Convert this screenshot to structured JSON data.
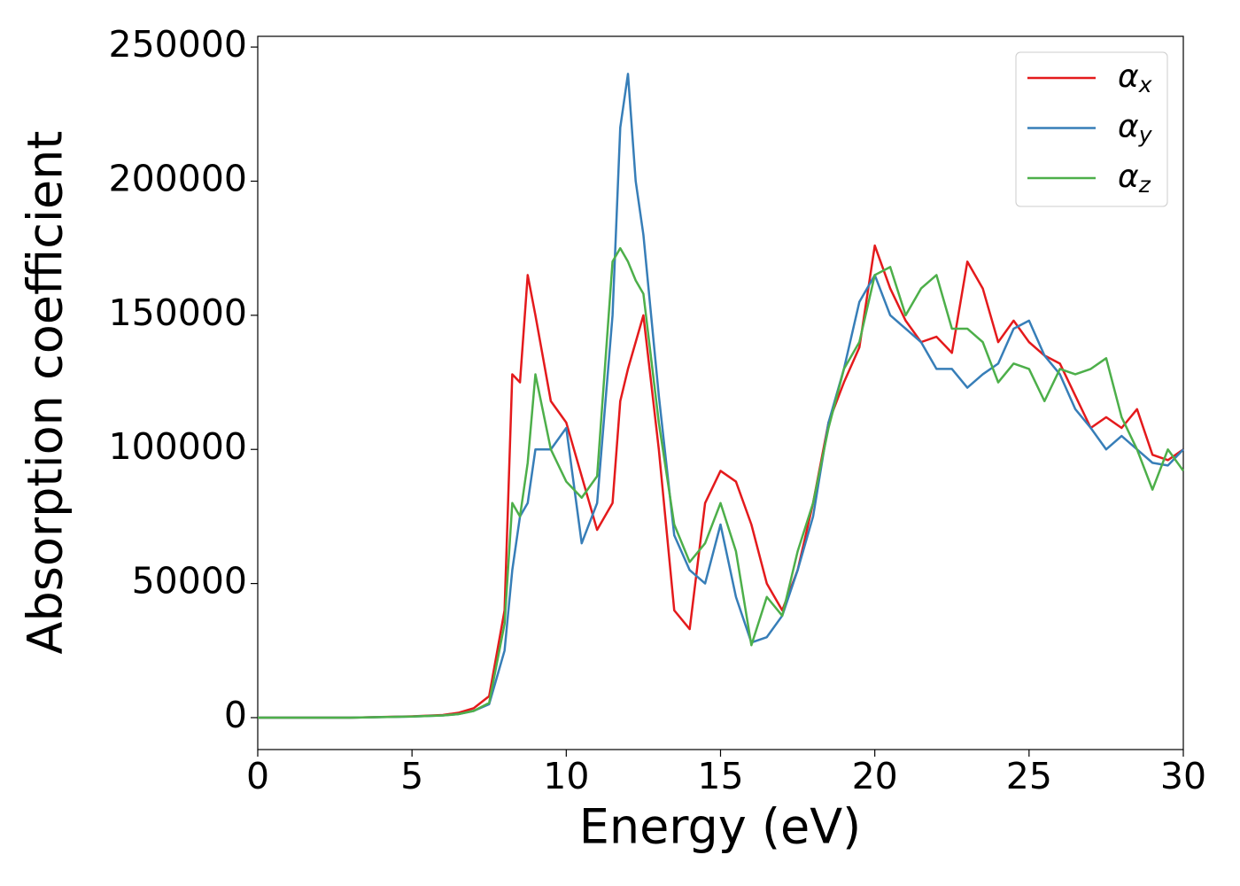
{
  "chart_data": {
    "type": "line",
    "xlabel": "Energy (eV)",
    "ylabel": "Absorption coefficient",
    "x": [
      0,
      3,
      5,
      6,
      6.5,
      7,
      7.5,
      8,
      8.25,
      8.5,
      8.75,
      9,
      9.5,
      10,
      10.5,
      11,
      11.5,
      11.75,
      12,
      12.25,
      12.5,
      13,
      13.5,
      14,
      14.5,
      15,
      15.5,
      16,
      16.5,
      17,
      17.5,
      18,
      18.5,
      19,
      19.5,
      20,
      20.5,
      21,
      21.5,
      22,
      22.5,
      23,
      23.5,
      24,
      24.5,
      25,
      25.5,
      26,
      26.5,
      27,
      27.5,
      28,
      28.5,
      29,
      29.5,
      30
    ],
    "series": [
      {
        "name": "αx",
        "color": "#e41a1c",
        "values": [
          0,
          0,
          500,
          1000,
          1800,
          3500,
          8000,
          40000,
          128000,
          125000,
          165000,
          150000,
          118000,
          110000,
          90000,
          70000,
          80000,
          118000,
          130000,
          140000,
          150000,
          100000,
          40000,
          33000,
          80000,
          92000,
          88000,
          72000,
          50000,
          40000,
          55000,
          80000,
          110000,
          125000,
          138000,
          176000,
          160000,
          148000,
          140000,
          142000,
          136000,
          170000,
          160000,
          140000,
          148000,
          140000,
          135000,
          132000,
          120000,
          108000,
          112000,
          108000,
          115000,
          98000,
          96000,
          100000
        ]
      },
      {
        "name": "αy",
        "color": "#377eb8",
        "values": [
          0,
          0,
          400,
          800,
          1300,
          2500,
          5000,
          25000,
          55000,
          75000,
          80000,
          100000,
          100000,
          108000,
          65000,
          80000,
          150000,
          220000,
          240000,
          200000,
          180000,
          120000,
          68000,
          55000,
          50000,
          72000,
          45000,
          28000,
          30000,
          38000,
          55000,
          75000,
          110000,
          130000,
          155000,
          165000,
          150000,
          145000,
          140000,
          130000,
          130000,
          123000,
          128000,
          132000,
          145000,
          148000,
          135000,
          128000,
          115000,
          108000,
          100000,
          105000,
          100000,
          95000,
          94000,
          100000
        ]
      },
      {
        "name": "αz",
        "color": "#4daf4a",
        "values": [
          0,
          0,
          400,
          800,
          1300,
          2500,
          5500,
          35000,
          80000,
          75000,
          95000,
          128000,
          100000,
          88000,
          82000,
          90000,
          170000,
          175000,
          170000,
          163000,
          158000,
          110000,
          72000,
          58000,
          65000,
          80000,
          62000,
          27000,
          45000,
          38000,
          62000,
          80000,
          108000,
          130000,
          140000,
          165000,
          168000,
          150000,
          160000,
          165000,
          145000,
          145000,
          140000,
          125000,
          132000,
          130000,
          118000,
          130000,
          128000,
          130000,
          134000,
          112000,
          100000,
          85000,
          100000,
          92000
        ]
      }
    ],
    "xlim": [
      0,
      30
    ],
    "xticks": [
      0,
      5,
      10,
      15,
      20,
      25,
      30
    ],
    "ylim": [
      -11900,
      254000
    ],
    "yticks": [
      0,
      50000,
      100000,
      150000,
      200000,
      250000
    ],
    "grid": false,
    "legend": "upper right"
  }
}
